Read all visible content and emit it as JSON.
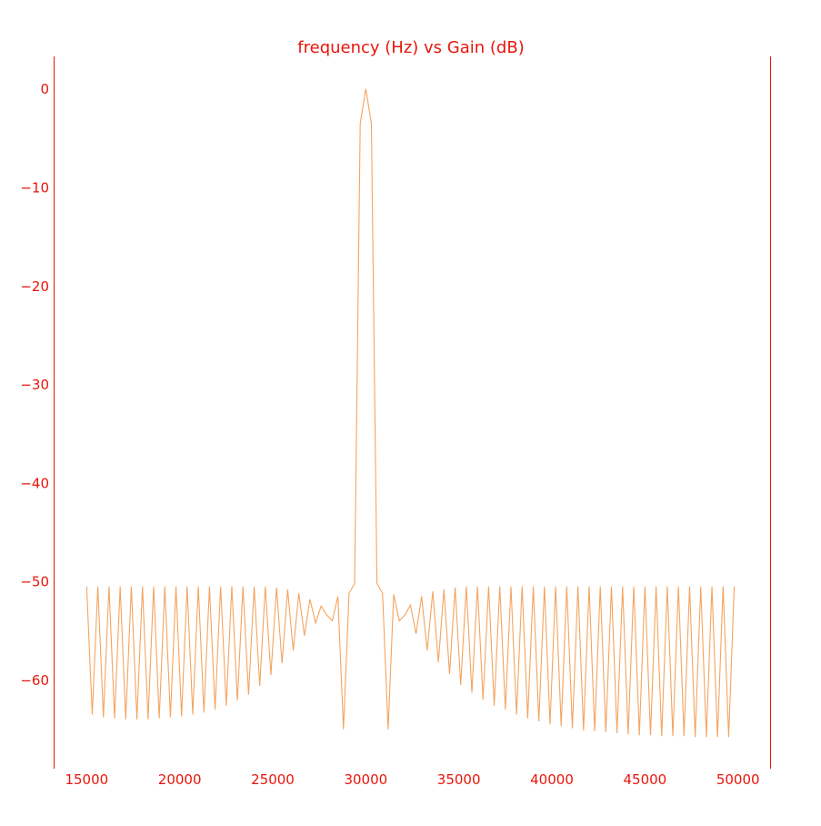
{
  "chart_data": {
    "type": "line",
    "title": "frequency (Hz)  vs Gain (dB)",
    "xlabel": "",
    "ylabel": "",
    "xlim": [
      13250,
      51750
    ],
    "ylim": [
      -69,
      3.3
    ],
    "x_ticks": [
      15000,
      20000,
      25000,
      30000,
      35000,
      40000,
      45000,
      50000
    ],
    "y_ticks": [
      0,
      -10,
      -20,
      -30,
      -40,
      -50,
      -60
    ],
    "x_tick_labels": [
      "15000",
      "20000",
      "25000",
      "30000",
      "35000",
      "40000",
      "45000",
      "50000"
    ],
    "y_tick_labels": [
      "0",
      "−10",
      "−20",
      "−30",
      "−40",
      "−50",
      "−60"
    ],
    "grid": false,
    "line_color": "#f4a460",
    "axis_color": "#e8160c",
    "series": [
      {
        "x": [
          15000,
          15300,
          15600,
          15900,
          16200,
          16500,
          16800,
          17100,
          17400,
          17700,
          18000,
          18300,
          18600,
          18900,
          19200,
          19500,
          19800,
          20100,
          20400,
          20700,
          21000,
          21300,
          21600,
          21900,
          22200,
          22500,
          22800,
          23100,
          23400,
          23700,
          24000,
          24300,
          24600,
          24900,
          25200,
          25500,
          25800,
          26100,
          26400,
          26700,
          27000,
          27300,
          27600,
          27900,
          28200,
          28500,
          28800,
          29100,
          29400,
          29700,
          30000,
          30300,
          30600,
          30900,
          31200,
          31500,
          31800,
          32100,
          32400,
          32700,
          33000,
          33300,
          33600,
          33900,
          34200,
          34500,
          34800,
          35100,
          35400,
          35700,
          36000,
          36300,
          36600,
          36900,
          37200,
          37500,
          37800,
          38100,
          38400,
          38700,
          39000,
          39300,
          39600,
          39900,
          40200,
          40500,
          40800,
          41100,
          41400,
          41700,
          42000,
          42300,
          42600,
          42900,
          43200,
          43500,
          43800,
          44100,
          44400,
          44700,
          45000,
          45300,
          45600,
          45900,
          46200,
          46500,
          46800,
          47100,
          47400,
          47700,
          48000,
          48300,
          48600,
          48900,
          49200,
          49500,
          49800
        ],
        "y": [
          -50.5,
          -63.5,
          -50.5,
          -63.8,
          -50.5,
          -63.9,
          -50.5,
          -64,
          -50.5,
          -64,
          -50.5,
          -64,
          -50.5,
          -63.9,
          -50.5,
          -63.8,
          -50.5,
          -63.7,
          -50.5,
          -63.5,
          -50.5,
          -63.3,
          -50.5,
          -63,
          -50.5,
          -62.6,
          -50.5,
          -62.1,
          -50.5,
          -61.5,
          -50.5,
          -60.6,
          -50.5,
          -59.5,
          -50.6,
          -58.3,
          -50.8,
          -57,
          -51.2,
          -55.5,
          -51.8,
          -54.2,
          -52.5,
          -53.4,
          -54,
          -51.5,
          -65,
          -51.2,
          -50.2,
          -3.5,
          0,
          -3.5,
          -50.2,
          -51.2,
          -65,
          -51.3,
          -54,
          -53.4,
          -52.4,
          -55.3,
          -51.5,
          -57,
          -51,
          -58.2,
          -50.8,
          -59.4,
          -50.6,
          -60.5,
          -50.5,
          -61.3,
          -50.5,
          -62,
          -50.5,
          -62.6,
          -50.5,
          -63,
          -50.5,
          -63.5,
          -50.5,
          -63.9,
          -50.5,
          -64.2,
          -50.5,
          -64.5,
          -50.5,
          -64.7,
          -50.5,
          -64.9,
          -50.5,
          -65.1,
          -50.5,
          -65.2,
          -50.5,
          -65.3,
          -50.5,
          -65.4,
          -50.5,
          -65.5,
          -50.5,
          -65.6,
          -50.5,
          -65.6,
          -50.5,
          -65.7,
          -50.5,
          -65.7,
          -50.5,
          -65.7,
          -50.5,
          -65.8,
          -50.5,
          -65.8,
          -50.5,
          -65.8,
          -50.5,
          -65.8,
          -50.5
        ]
      }
    ]
  }
}
